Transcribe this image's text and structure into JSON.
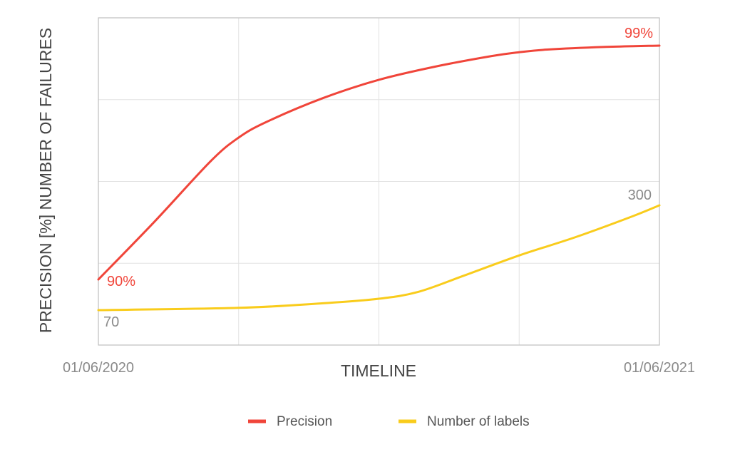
{
  "chart_data": {
    "type": "line",
    "title": "",
    "xlabel": "TIMELINE",
    "ylabel": "PRECISION [%] NUMBER OF FAILURES",
    "x_tick_labels": [
      "01/06/2020",
      "01/06/2021"
    ],
    "grid": true,
    "legend_position": "bottom-center",
    "series": [
      {
        "name": "Precision",
        "color": "#f0453a",
        "x": [
          0,
          0.1,
          0.2,
          0.25,
          0.3,
          0.4,
          0.5,
          0.6,
          0.7,
          0.75,
          0.8,
          0.9,
          1.0
        ],
        "values": [
          90.0,
          92.2,
          94.5,
          95.4,
          96.0,
          96.9,
          97.6,
          98.1,
          98.5,
          98.65,
          98.75,
          98.85,
          98.9
        ],
        "start_label": "90%",
        "end_label": "99%"
      },
      {
        "name": "Number of labels",
        "color": "#f9cc1c",
        "x": [
          0,
          0.25,
          0.4,
          0.5,
          0.57,
          0.65,
          0.75,
          0.85,
          0.95,
          1.0
        ],
        "values": [
          70,
          75,
          85,
          95,
          110,
          145,
          190,
          230,
          275,
          300
        ],
        "start_label": "70",
        "end_label": "300"
      }
    ]
  }
}
